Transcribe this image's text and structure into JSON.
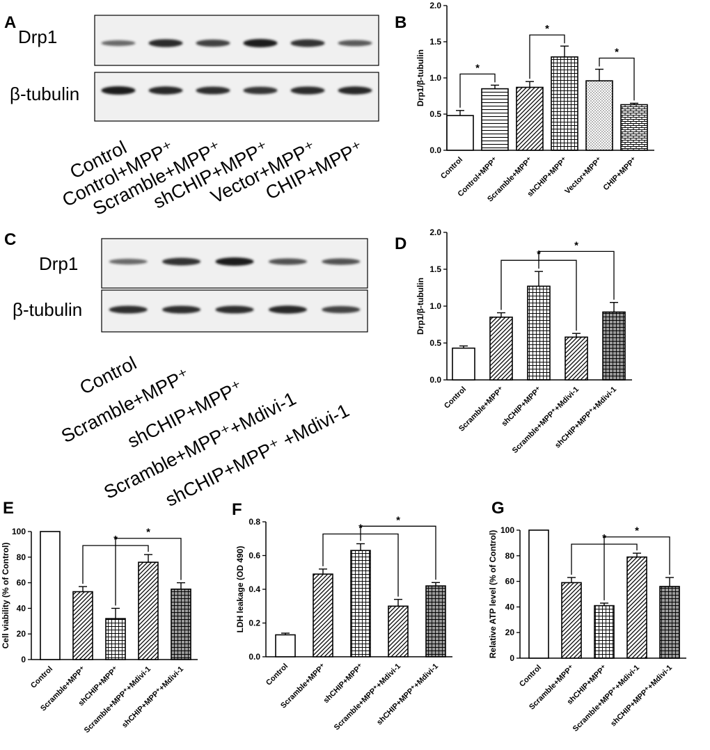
{
  "colors": {
    "ink": "#000000",
    "band": "#1e1e1e",
    "membrane": "#f0f0f0",
    "gray_fill": "#9a9a9a"
  },
  "blots": [
    {
      "letter": "A",
      "labels": [
        "Drp1",
        "β-tubulin"
      ],
      "categories": [
        "Control",
        "Control+MPP⁺",
        "Scramble+MPP⁺",
        "shCHIP+MPP⁺",
        "Vector+MPP⁺",
        "CHIP+MPP⁺"
      ],
      "drp1_intensity": [
        0.45,
        0.9,
        0.75,
        1.0,
        0.85,
        0.55
      ],
      "tubulin_intensity": [
        1.0,
        0.9,
        0.85,
        0.8,
        0.88,
        0.9
      ]
    },
    {
      "letter": "C",
      "labels": [
        "Drp1",
        "β-tubulin"
      ],
      "categories": [
        "Control",
        "Scramble+MPP⁺",
        "shCHIP+MPP⁺",
        "Scramble+MPP⁺+Mdivi-1",
        "shCHIP+MPP⁺ +Mdivi-1"
      ],
      "drp1_intensity": [
        0.45,
        0.85,
        1.0,
        0.6,
        0.6
      ],
      "tubulin_intensity": [
        0.85,
        0.85,
        0.85,
        0.9,
        0.7
      ]
    }
  ],
  "chart_data": [
    {
      "letter": "B",
      "type": "bar",
      "ylabel": "Drp1/β-tubulin",
      "ylim": [
        0,
        2.0
      ],
      "yticks": [
        "0.0",
        "0.5",
        "1.0",
        "1.5",
        "2.0"
      ],
      "categories": [
        "Control",
        "Control+MPP⁺",
        "Scramble+MPP⁺",
        "shCHIP+MPP⁺",
        "Vector+MPP⁺",
        "CHIP+MPP⁺"
      ],
      "values": [
        0.48,
        0.85,
        0.87,
        1.29,
        0.96,
        0.63
      ],
      "errors": [
        0.07,
        0.05,
        0.08,
        0.15,
        0.16,
        0.02
      ],
      "patterns": [
        "open",
        "hlines",
        "diag",
        "grid",
        "dots",
        "brick"
      ],
      "significance": [
        {
          "from": 0,
          "to": 1,
          "label": "*"
        },
        {
          "from": 2,
          "to": 3,
          "label": "*"
        },
        {
          "from": 4,
          "to": 5,
          "label": "*"
        }
      ]
    },
    {
      "letter": "D",
      "type": "bar",
      "ylabel": "Drp1/β-tubulin",
      "ylim": [
        0,
        2.0
      ],
      "yticks": [
        "0.0",
        "0.5",
        "1.0",
        "1.5",
        "2.0"
      ],
      "categories": [
        "Control",
        "Scramble+MPP⁺",
        "shCHIP+MPP⁺",
        "Scramble+MPP⁺+Mdivi-1",
        "shCHIP+MPP⁺+Mdivi-1"
      ],
      "values": [
        0.43,
        0.85,
        1.27,
        0.58,
        0.92
      ],
      "errors": [
        0.03,
        0.06,
        0.2,
        0.05,
        0.13
      ],
      "patterns": [
        "open",
        "diag",
        "grid",
        "diag",
        "grid-gray"
      ],
      "significance": [
        {
          "from": 1,
          "to": 3,
          "label": "*"
        },
        {
          "from": 2,
          "to": 4,
          "label": "*"
        }
      ]
    },
    {
      "letter": "E",
      "type": "bar",
      "ylabel": "Cell viability (% of Control)",
      "ylim": [
        0,
        100
      ],
      "yticks": [
        "0",
        "20",
        "40",
        "60",
        "80",
        "100"
      ],
      "categories": [
        "Control",
        "Scramble+MPP⁺",
        "shCHIP+MPP⁺",
        "Scramble+MPP⁺+Mdivi-1",
        "shCHIP+MPP⁺+Mdivi-1"
      ],
      "values": [
        100,
        53,
        32,
        76,
        55
      ],
      "errors": [
        0,
        4,
        8,
        6,
        5
      ],
      "patterns": [
        "open",
        "diag",
        "grid",
        "diag",
        "grid-gray"
      ],
      "significance": [
        {
          "from": 1,
          "to": 3,
          "label": "*"
        },
        {
          "from": 2,
          "to": 4,
          "label": "*"
        }
      ]
    },
    {
      "letter": "F",
      "type": "bar",
      "ylabel": "LDH leakage (OD 490)",
      "ylim": [
        0,
        0.8
      ],
      "yticks": [
        "0.0",
        "0.2",
        "0.4",
        "0.6",
        "0.8"
      ],
      "categories": [
        "Control",
        "Scramble+MPP⁺",
        "shCHIP+MPP⁺",
        "Scramble+MPP⁺+Mdivi-1",
        "shCHIP+MPP⁺+Mdivi-1"
      ],
      "values": [
        0.13,
        0.49,
        0.63,
        0.3,
        0.42
      ],
      "errors": [
        0.01,
        0.03,
        0.04,
        0.04,
        0.02
      ],
      "patterns": [
        "open",
        "diag",
        "grid",
        "diag",
        "grid-gray"
      ],
      "significance": [
        {
          "from": 1,
          "to": 3,
          "label": "*"
        },
        {
          "from": 2,
          "to": 4,
          "label": "*"
        }
      ]
    },
    {
      "letter": "G",
      "type": "bar",
      "ylabel": "Relative ATP level (% of Control)",
      "ylim": [
        0,
        100
      ],
      "yticks": [
        "0",
        "20",
        "40",
        "60",
        "80",
        "100"
      ],
      "categories": [
        "Control",
        "Scramble+MPP⁺",
        "shCHIP+MPP⁺",
        "Scramble+MPP⁺+Mdivi-1",
        "shCHIP+MPP⁺+Mdivi-1"
      ],
      "values": [
        100,
        59,
        41,
        79,
        56
      ],
      "errors": [
        0,
        4,
        2,
        3,
        7
      ],
      "patterns": [
        "open",
        "diag",
        "grid",
        "diag",
        "grid-gray"
      ],
      "significance": [
        {
          "from": 1,
          "to": 3,
          "label": "*"
        },
        {
          "from": 2,
          "to": 4,
          "label": "*"
        }
      ]
    }
  ]
}
